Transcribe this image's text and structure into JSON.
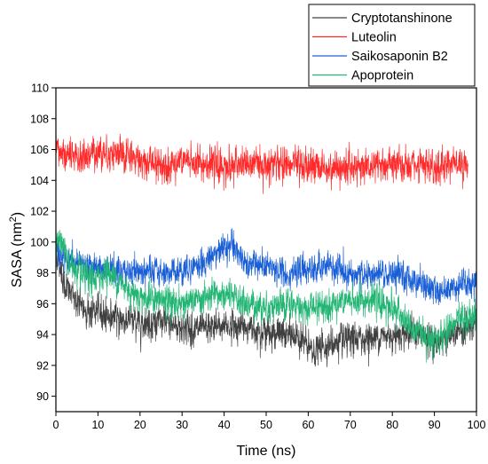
{
  "chart_data": {
    "type": "line",
    "title": "",
    "xlabel": "Time (ns)",
    "ylabel_main": "SASA (nm",
    "ylabel_sup": "2",
    "ylabel_close": ")",
    "xlim": [
      0,
      100
    ],
    "ylim": [
      89,
      110
    ],
    "xticks": [
      0,
      10,
      20,
      30,
      40,
      50,
      60,
      70,
      80,
      90,
      100
    ],
    "yticks": [
      90,
      92,
      94,
      96,
      98,
      100,
      102,
      104,
      106,
      108,
      110
    ],
    "grid": false,
    "legend_position": "top-right",
    "series": [
      {
        "name": "Cryptotanshinone",
        "color": "#404040",
        "x": [
          0,
          1,
          2,
          4,
          6,
          8,
          10,
          12,
          15,
          20,
          25,
          30,
          35,
          40,
          45,
          50,
          55,
          58,
          61,
          63,
          66,
          70,
          75,
          80,
          85,
          90,
          95,
          100
        ],
        "values": [
          99.5,
          98.5,
          97.2,
          96.5,
          95.8,
          95.5,
          95.5,
          95.3,
          95.0,
          94.8,
          94.8,
          94.5,
          94.3,
          94.6,
          94.5,
          94.2,
          94.0,
          93.8,
          92.8,
          93.2,
          93.4,
          93.6,
          93.8,
          94.0,
          94.2,
          93.5,
          94.0,
          94.6
        ],
        "amplitude": 1.1
      },
      {
        "name": "Luteolin",
        "color": "#ff2a2a",
        "x": [
          0,
          5,
          10,
          15,
          20,
          25,
          30,
          35,
          40,
          45,
          50,
          55,
          60,
          65,
          70,
          75,
          80,
          85,
          90,
          95,
          98
        ],
        "values": [
          106.0,
          105.3,
          105.9,
          105.7,
          105.3,
          105.0,
          105.2,
          105.1,
          104.9,
          105.0,
          105.1,
          105.0,
          104.9,
          104.8,
          104.9,
          105.0,
          105.0,
          104.8,
          104.8,
          105.3,
          104.9
        ],
        "amplitude": 1.2
      },
      {
        "name": "Saikosaponin B2",
        "color": "#1a5fd6",
        "x": [
          0,
          2,
          5,
          10,
          15,
          20,
          25,
          30,
          35,
          38,
          41,
          44,
          47,
          50,
          55,
          60,
          65,
          70,
          75,
          80,
          85,
          88,
          91,
          95,
          100
        ],
        "values": [
          99.5,
          99.0,
          98.7,
          98.3,
          98.0,
          98.1,
          98.0,
          98.2,
          98.6,
          99.3,
          99.9,
          99.0,
          98.5,
          98.3,
          98.0,
          98.2,
          98.4,
          97.9,
          97.8,
          97.9,
          97.6,
          97.2,
          96.8,
          97.2,
          97.4
        ],
        "amplitude": 1.0
      },
      {
        "name": "Apoprotein",
        "color": "#22b573",
        "x": [
          0,
          1,
          3,
          5,
          8,
          10,
          12,
          15,
          20,
          25,
          30,
          35,
          40,
          45,
          50,
          55,
          60,
          65,
          70,
          75,
          80,
          85,
          88,
          91,
          95,
          100
        ],
        "values": [
          100.5,
          100.0,
          98.8,
          98.0,
          97.5,
          97.6,
          98.2,
          97.4,
          96.5,
          96.2,
          96.0,
          96.3,
          96.6,
          96.0,
          95.8,
          95.9,
          95.7,
          96.0,
          96.1,
          96.3,
          95.8,
          94.2,
          94.0,
          93.6,
          94.8,
          95.2
        ],
        "amplitude": 1.1
      }
    ]
  }
}
